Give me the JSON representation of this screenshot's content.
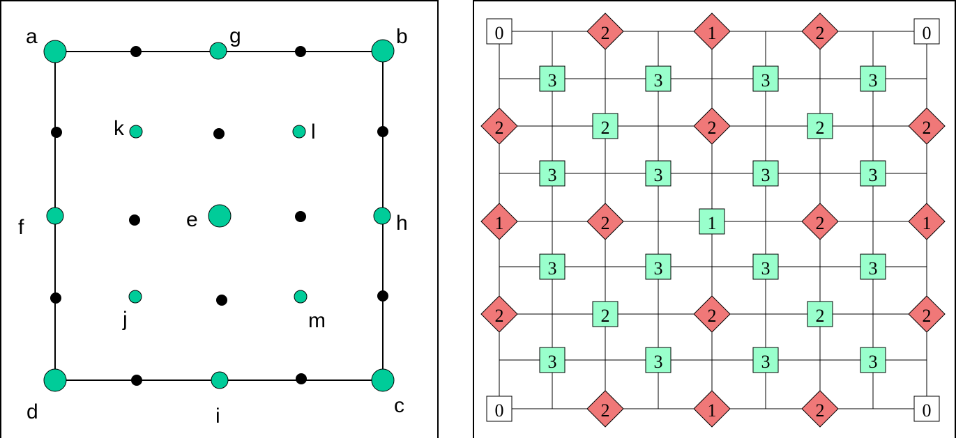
{
  "colors": {
    "teal": "#00cc99",
    "black": "#000000",
    "green_box": "#99ffcc",
    "red_diamond": "#f07878",
    "white_box": "#ffffff"
  },
  "left_diagram": {
    "labels": {
      "a": "a",
      "b": "b",
      "c": "c",
      "d": "d",
      "e": "e",
      "f": "f",
      "g": "g",
      "h": "h",
      "i": "i",
      "j": "j",
      "k": "k",
      "l": "l",
      "m": "m"
    }
  },
  "right_diagram": {
    "rows": [
      [
        "0",
        "2",
        "1",
        "2",
        "0"
      ],
      [
        "3",
        "3",
        "3",
        "3"
      ],
      [
        "2",
        "2",
        "2",
        "2",
        "2"
      ],
      [
        "3",
        "3",
        "3",
        "3"
      ],
      [
        "1",
        "2",
        "1",
        "2",
        "1"
      ],
      [
        "3",
        "3",
        "3",
        "3"
      ],
      [
        "2",
        "2",
        "2",
        "2",
        "2"
      ],
      [
        "3",
        "3",
        "3",
        "3"
      ],
      [
        "0",
        "2",
        "1",
        "2",
        "0"
      ]
    ]
  }
}
